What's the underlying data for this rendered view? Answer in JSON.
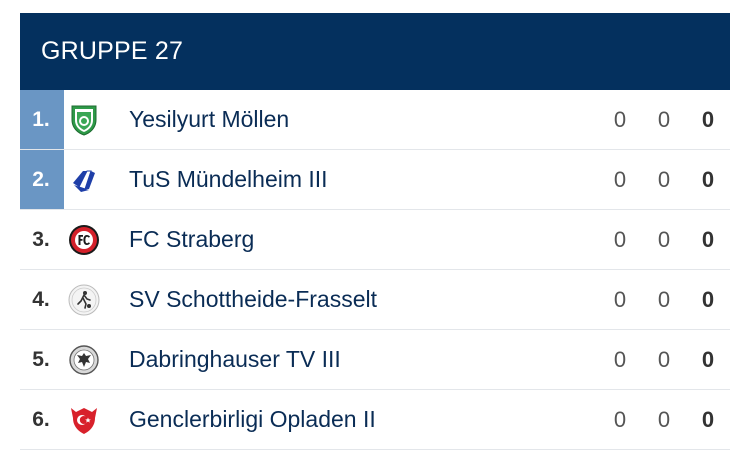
{
  "group": {
    "title": "GRUPPE 27"
  },
  "rows": [
    {
      "rank": "1.",
      "team": "Yesilyurt Möllen",
      "games": "0",
      "diff": "0",
      "points": "0",
      "promo": true,
      "logo": "green-shield-crest-icon"
    },
    {
      "rank": "2.",
      "team": "TuS Mündelheim III",
      "games": "0",
      "diff": "0",
      "points": "0",
      "promo": true,
      "logo": "blue-white-wing-crest-icon"
    },
    {
      "rank": "3.",
      "team": "FC Straberg",
      "games": "0",
      "diff": "0",
      "points": "0",
      "promo": false,
      "logo": "red-fc-round-crest-icon"
    },
    {
      "rank": "4.",
      "team": "SV Schottheide-Frasselt",
      "games": "0",
      "diff": "0",
      "points": "0",
      "promo": false,
      "logo": "white-football-player-crest-icon"
    },
    {
      "rank": "5.",
      "team": "Dabringhauser TV III",
      "games": "0",
      "diff": "0",
      "points": "0",
      "promo": false,
      "logo": "grey-eagle-round-crest-icon"
    },
    {
      "rank": "6.",
      "team": "Genclerbirligi Opladen II",
      "games": "0",
      "diff": "0",
      "points": "0",
      "promo": false,
      "logo": "red-crescent-shield-crest-icon"
    }
  ],
  "colors": {
    "header": "#04305e",
    "promotion": "#6a96c4",
    "team_text": "#0a2c55"
  }
}
